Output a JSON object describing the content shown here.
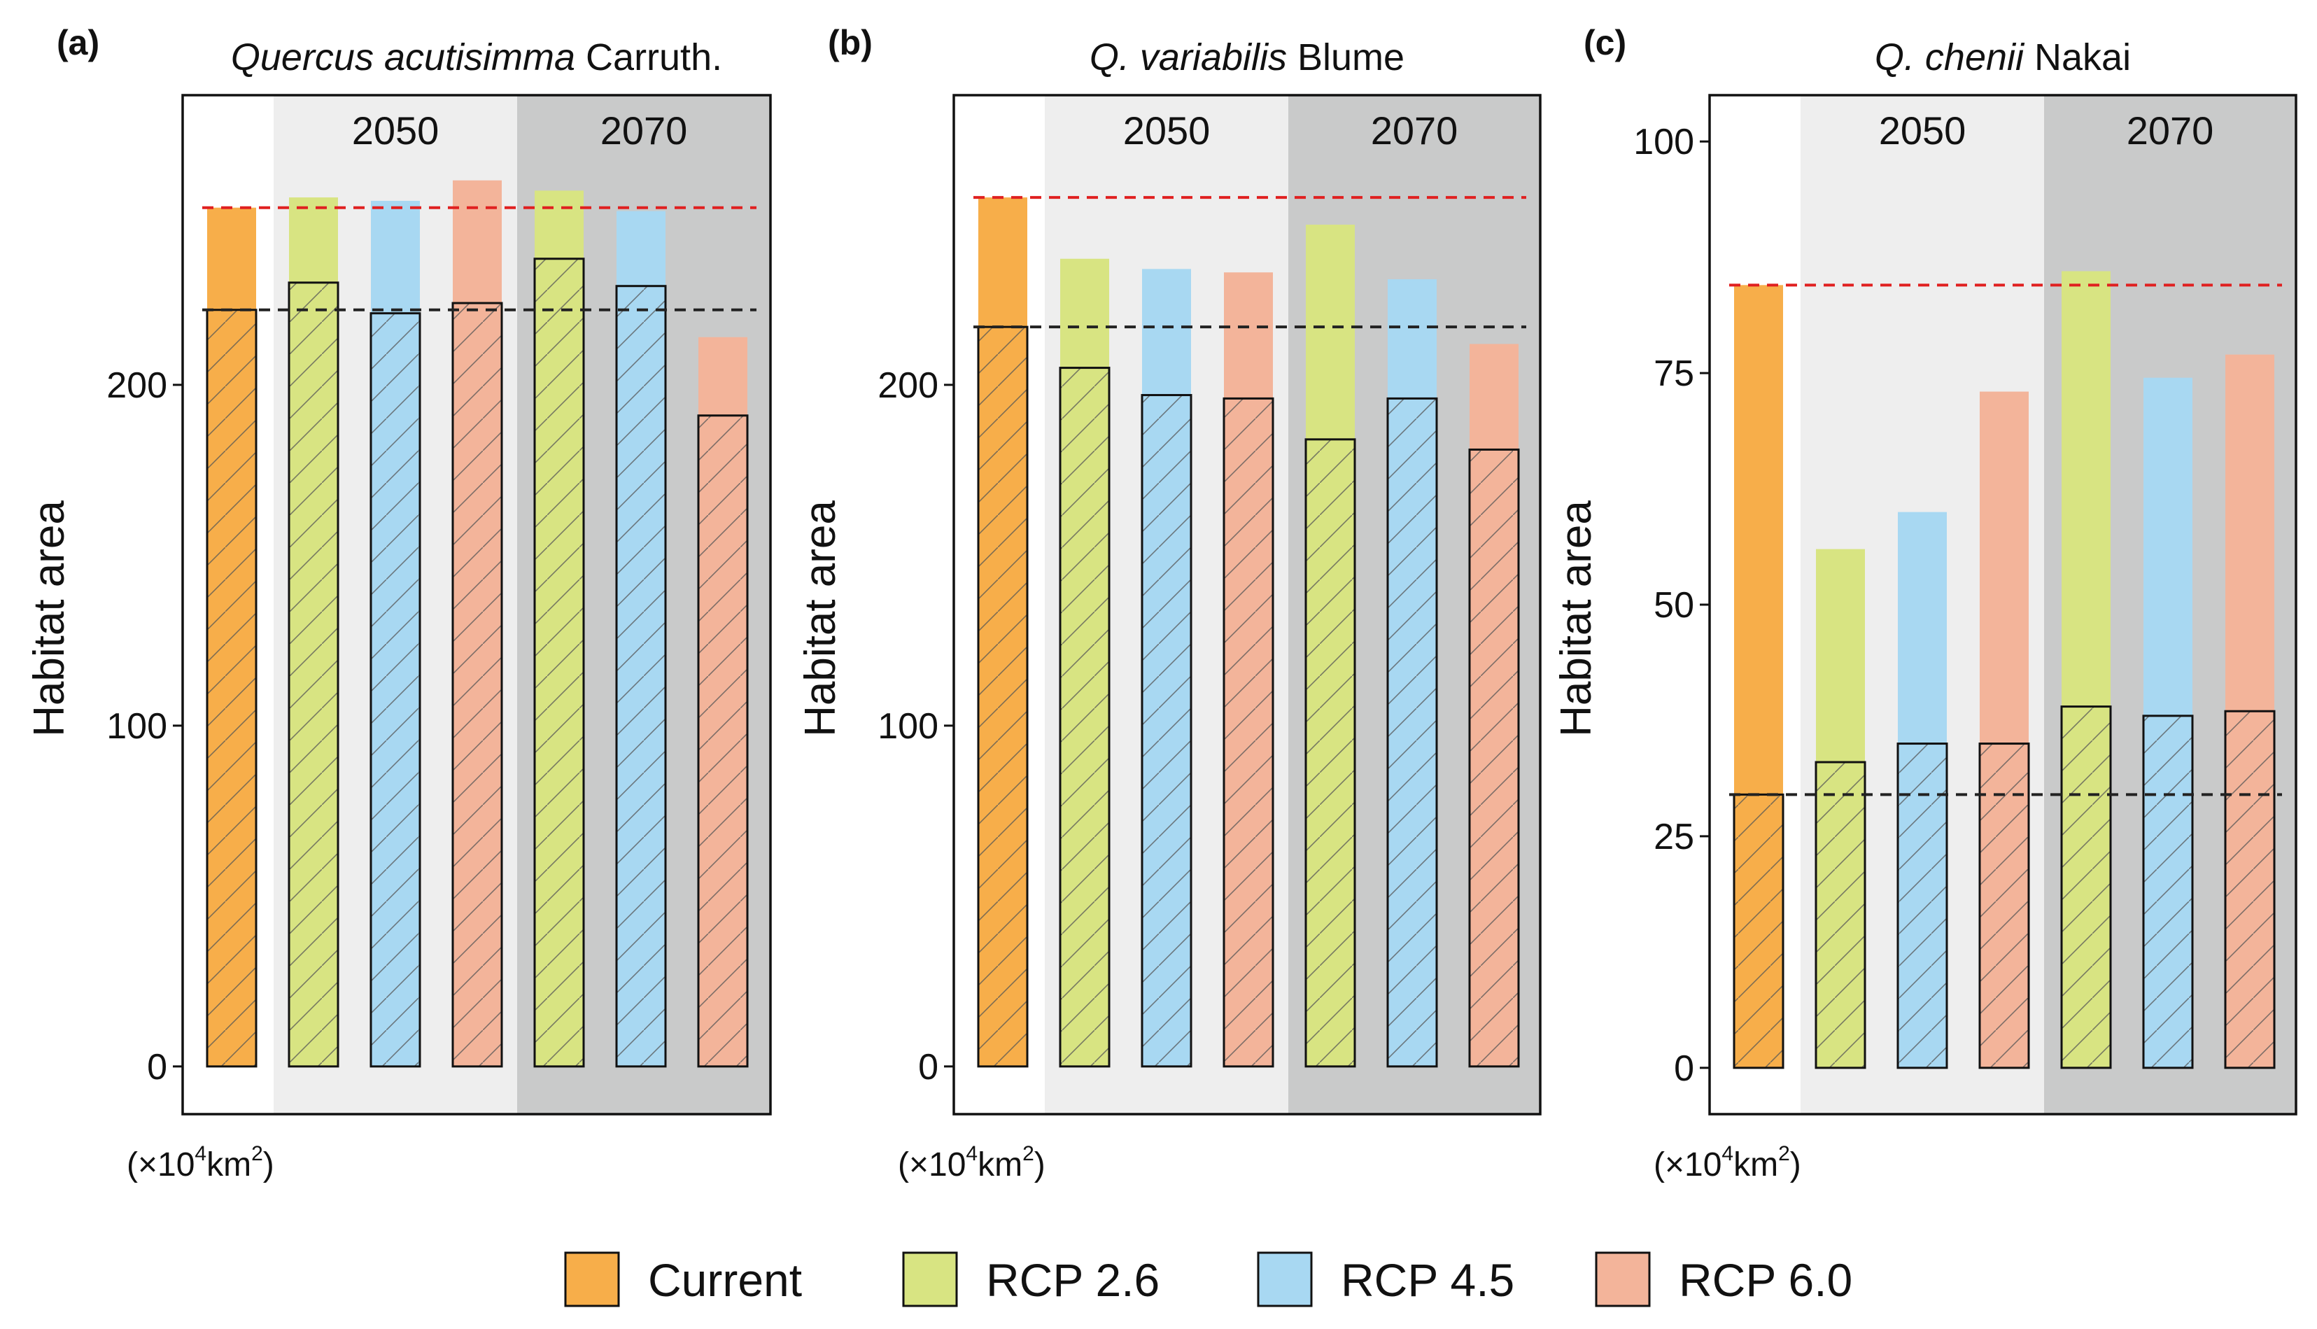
{
  "figure": {
    "legend": [
      {
        "label": "Current",
        "color": "#F7AE4A"
      },
      {
        "label": "RCP 2.6",
        "color": "#D8E482"
      },
      {
        "label": "RCP 4.5",
        "color": "#A8D8F2"
      },
      {
        "label": "RCP 6.0",
        "color": "#F3B49A"
      }
    ],
    "legend_position": "bottom",
    "colors": {
      "period_2050_bg": "#EEEEEE",
      "period_2070_bg": "#C9CACA",
      "current_reference_line": "#E02020",
      "baseline_reference_line": "#222222"
    }
  },
  "chart_data": [
    {
      "type": "bar",
      "panel_tag": "(a)",
      "title_italic": "Quercus acutisimma",
      "title_rest": " Carruth.",
      "ylabel": "Habitat area",
      "unit_prefix": "(×10",
      "unit_sup1": "4",
      "unit_mid": "km",
      "unit_sup2": "2",
      "unit_suffix": ")",
      "ylim": [
        -14,
        285
      ],
      "yticks": [
        0,
        100,
        200
      ],
      "periods": [
        "2050",
        "2070"
      ],
      "bars": [
        {
          "scenario": "Current",
          "period": "Current",
          "total": 252,
          "retained": 222
        },
        {
          "scenario": "RCP 2.6",
          "period": "2050",
          "total": 255,
          "retained": 230
        },
        {
          "scenario": "RCP 4.5",
          "period": "2050",
          "total": 254,
          "retained": 221
        },
        {
          "scenario": "RCP 6.0",
          "period": "2050",
          "total": 260,
          "retained": 224
        },
        {
          "scenario": "RCP 2.6",
          "period": "2070",
          "total": 257,
          "retained": 237
        },
        {
          "scenario": "RCP 4.5",
          "period": "2070",
          "total": 251,
          "retained": 229
        },
        {
          "scenario": "RCP 6.0",
          "period": "2070",
          "total": 214,
          "retained": 191
        }
      ],
      "ref_current_total": 252,
      "ref_current_retained": 222
    },
    {
      "type": "bar",
      "panel_tag": "(b)",
      "title_italic": "Q. variabilis",
      "title_rest": " Blume",
      "ylabel": "Habitat area",
      "unit_prefix": "(×10",
      "unit_sup1": "4",
      "unit_mid": "km",
      "unit_sup2": "2",
      "unit_suffix": ")",
      "ylim": [
        -14,
        285
      ],
      "yticks": [
        0,
        100,
        200
      ],
      "periods": [
        "2050",
        "2070"
      ],
      "bars": [
        {
          "scenario": "Current",
          "period": "Current",
          "total": 255,
          "retained": 217
        },
        {
          "scenario": "RCP 2.6",
          "period": "2050",
          "total": 237,
          "retained": 205
        },
        {
          "scenario": "RCP 4.5",
          "period": "2050",
          "total": 234,
          "retained": 197
        },
        {
          "scenario": "RCP 6.0",
          "period": "2050",
          "total": 233,
          "retained": 196
        },
        {
          "scenario": "RCP 2.6",
          "period": "2070",
          "total": 247,
          "retained": 184
        },
        {
          "scenario": "RCP 4.5",
          "period": "2070",
          "total": 231,
          "retained": 196
        },
        {
          "scenario": "RCP 6.0",
          "period": "2070",
          "total": 212,
          "retained": 181
        }
      ],
      "ref_current_total": 255,
      "ref_current_retained": 217
    },
    {
      "type": "bar",
      "panel_tag": "(c)",
      "title_italic": "Q. chenii",
      "title_rest": " Nakai",
      "ylabel": "Habitat area",
      "unit_prefix": "(×10",
      "unit_sup1": "4",
      "unit_mid": "km",
      "unit_sup2": "2",
      "unit_suffix": ")",
      "ylim": [
        -5,
        105
      ],
      "yticks": [
        0,
        25,
        50,
        75,
        100
      ],
      "periods": [
        "2050",
        "2070"
      ],
      "bars": [
        {
          "scenario": "Current",
          "period": "Current",
          "total": 84.5,
          "retained": 29.5
        },
        {
          "scenario": "RCP 2.6",
          "period": "2050",
          "total": 56,
          "retained": 33
        },
        {
          "scenario": "RCP 4.5",
          "period": "2050",
          "total": 60,
          "retained": 35
        },
        {
          "scenario": "RCP 6.0",
          "period": "2050",
          "total": 73,
          "retained": 35
        },
        {
          "scenario": "RCP 2.6",
          "period": "2070",
          "total": 86,
          "retained": 39
        },
        {
          "scenario": "RCP 4.5",
          "period": "2070",
          "total": 74.5,
          "retained": 38
        },
        {
          "scenario": "RCP 6.0",
          "period": "2070",
          "total": 77,
          "retained": 38.5
        }
      ],
      "ref_current_total": 84.5,
      "ref_current_retained": 29.5
    }
  ]
}
